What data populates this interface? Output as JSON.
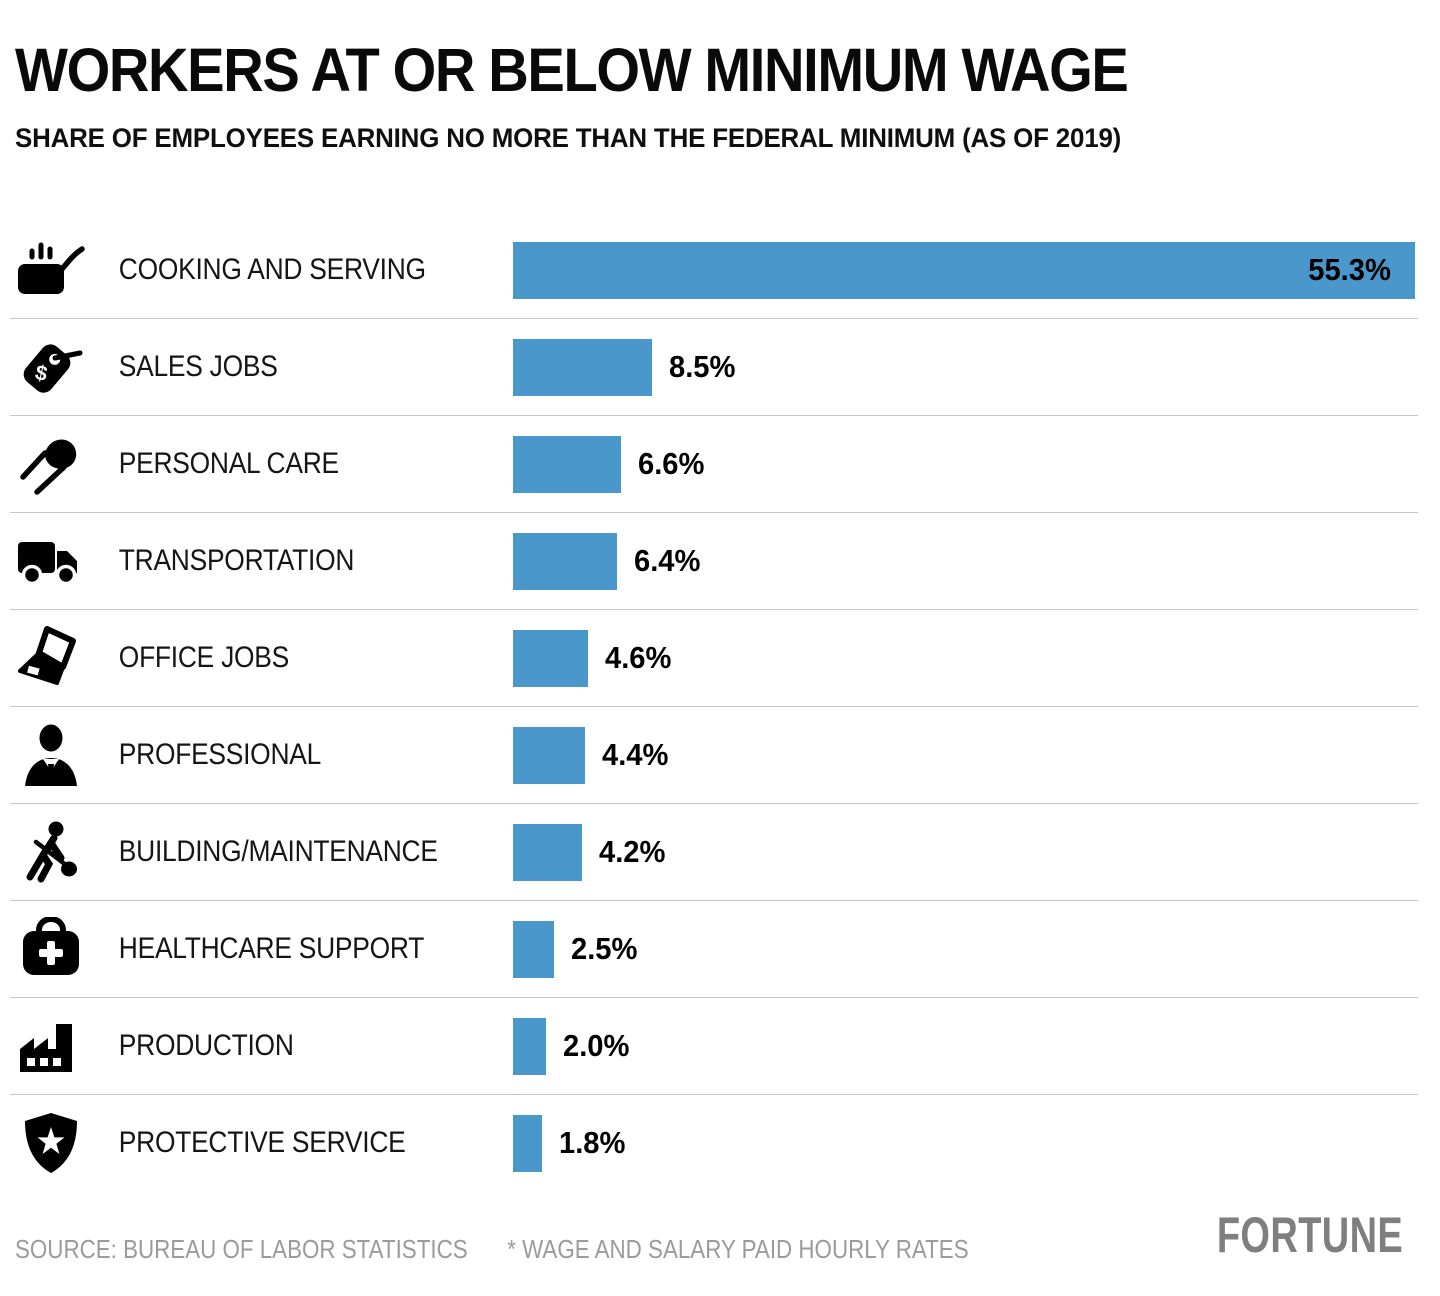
{
  "header": {
    "title": "WORKERS AT OR BELOW MINIMUM WAGE",
    "subtitle": "SHARE OF EMPLOYEES EARNING NO MORE THAN THE FEDERAL MINIMUM (AS OF 2019)"
  },
  "chart_data": {
    "type": "bar",
    "orientation": "horizontal",
    "title": "WORKERS AT OR BELOW MINIMUM WAGE",
    "subtitle": "SHARE OF EMPLOYEES EARNING NO MORE THAN THE FEDERAL MINIMUM (AS OF 2019)",
    "unit": "percent",
    "xlim": [
      0,
      56
    ],
    "grid": false,
    "legend": "none",
    "categories": [
      "COOKING AND SERVING",
      "SALES JOBS",
      "PERSONAL CARE",
      "TRANSPORTATION",
      "OFFICE JOBS",
      "PROFESSIONAL",
      "BUILDING/MAINTENANCE",
      "HEALTHCARE SUPPORT",
      "PRODUCTION",
      "PROTECTIVE SERVICE"
    ],
    "values": [
      55.3,
      8.5,
      6.6,
      6.4,
      4.6,
      4.4,
      4.2,
      2.5,
      2.0,
      1.8
    ],
    "value_labels": [
      "55.3%",
      "8.5%",
      "6.6%",
      "6.4%",
      "4.6%",
      "4.4%",
      "4.2%",
      "2.5%",
      "2.0%",
      "1.8%"
    ],
    "icons": [
      "cooking-pot-icon",
      "price-tag-icon",
      "hand-mirror-icon",
      "truck-icon",
      "laptop-icon",
      "business-person-icon",
      "worker-shovel-icon",
      "medical-bag-icon",
      "factory-icon",
      "shield-star-icon"
    ],
    "bar_color": "#4a97cc",
    "first_value_inside_bar": true
  },
  "footer": {
    "source": "SOURCE: BUREAU OF LABOR STATISTICS",
    "footnote": "* WAGE AND SALARY PAID HOURLY RATES",
    "logo": "FORTUNE"
  },
  "colors": {
    "bar": "#4a97cc",
    "divider": "#c9c9c9",
    "text": "#111111",
    "muted_text": "#9b9b9b",
    "logo_gray": "#7f7f7f",
    "background": "#ffffff"
  }
}
